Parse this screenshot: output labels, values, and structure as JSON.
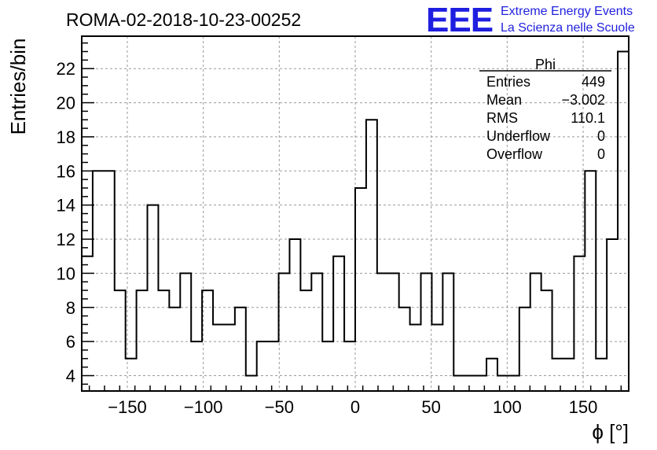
{
  "title": "ROMA-02-2018-10-23-00252",
  "logo": {
    "mark": "EEE",
    "line1": "Extreme Energy Events",
    "line2": "La Scienza nelle Scuole",
    "color": "#1f1fe0"
  },
  "stats": {
    "name": "Phi",
    "rows": [
      {
        "label": "Entries",
        "value": "449"
      },
      {
        "label": "Mean",
        "value": "−3.002"
      },
      {
        "label": "RMS",
        "value": "110.1"
      },
      {
        "label": "Underflow",
        "value": "0"
      },
      {
        "label": "Overflow",
        "value": "0"
      }
    ]
  },
  "chart_data": {
    "type": "bar",
    "style": "step-histogram",
    "xlabel": "ϕ [°]",
    "ylabel": "Entries/bin",
    "xlim": [
      -180,
      180
    ],
    "ylim": [
      3.1,
      23.9
    ],
    "bin_width": 7.2,
    "x_ticks": [
      -150,
      -100,
      -50,
      0,
      50,
      100,
      150
    ],
    "x_tick_labels": [
      "−150",
      "−100",
      "−50",
      "0",
      "50",
      "100",
      "150"
    ],
    "y_ticks": [
      4,
      6,
      8,
      10,
      12,
      14,
      16,
      18,
      20,
      22
    ],
    "y_tick_labels": [
      "4",
      "6",
      "8",
      "10",
      "12",
      "14",
      "16",
      "18",
      "20",
      "22"
    ],
    "grid": true,
    "series": [
      {
        "values": [
          11,
          16,
          16,
          9,
          5,
          9,
          14,
          9,
          8,
          10,
          6,
          9,
          7,
          7,
          8,
          4,
          6,
          6,
          10,
          12,
          9,
          10,
          6,
          11,
          6,
          15,
          19,
          10,
          10,
          8,
          7,
          10,
          7,
          10,
          4,
          4,
          4,
          5,
          4,
          4,
          8,
          10,
          9,
          5,
          5,
          11,
          16,
          5,
          12,
          23
        ]
      }
    ]
  }
}
